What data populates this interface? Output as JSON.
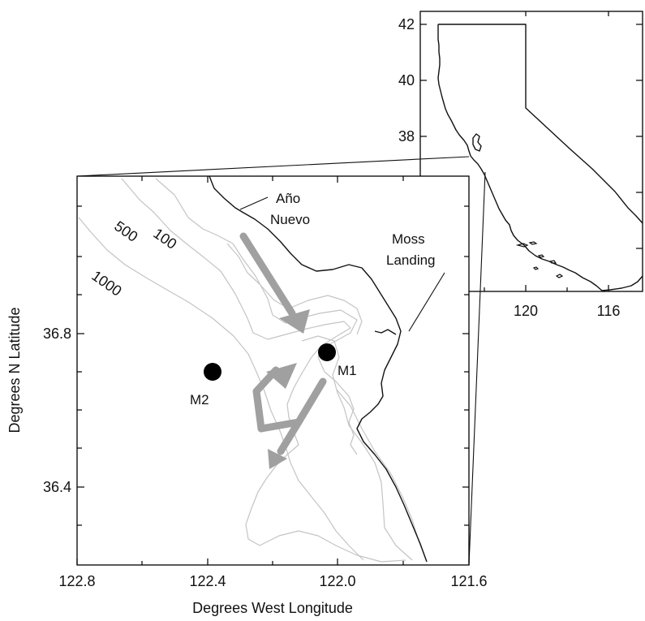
{
  "main_map": {
    "x_ticks": [
      "122.8",
      "122.4",
      "122.0",
      "121.6"
    ],
    "y_ticks": [
      "36.8",
      "36.4"
    ],
    "xlabel": "Degrees West Longitude",
    "ylabel": "Degrees N Latitude",
    "contours": [
      "100",
      "500",
      "1000"
    ],
    "places": {
      "ano_nuevo_line1": "Año",
      "ano_nuevo_line2": "Nuevo",
      "moss_landing_line1": "Moss",
      "moss_landing_line2": "Landing"
    },
    "moorings": [
      {
        "label": "M1",
        "lon": 122.02,
        "lat": 36.75
      },
      {
        "label": "M2",
        "lon": 122.37,
        "lat": 36.7
      }
    ]
  },
  "inset_map": {
    "x_ticks": [
      "120",
      "116"
    ],
    "y_ticks": [
      "42",
      "40",
      "38"
    ]
  },
  "colors": {
    "coastline": "#111111",
    "bathymetry": "#c4c4c4",
    "arrows": "#a0a0a0",
    "moorings": "#000000"
  }
}
